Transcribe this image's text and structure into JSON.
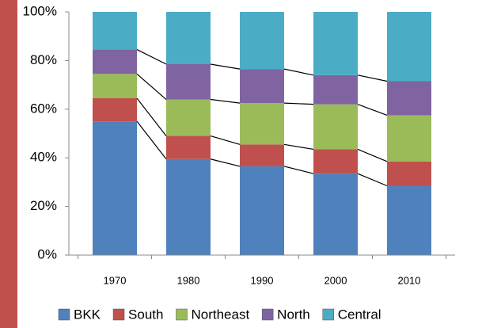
{
  "chart_data": {
    "type": "stacked_bar_100",
    "categories": [
      "1970",
      "1980",
      "1990",
      "2000",
      "2010"
    ],
    "series": [
      {
        "name": "BKK",
        "color": "#4f81bd",
        "values": [
          55,
          39.5,
          36.5,
          33.5,
          28.5
        ]
      },
      {
        "name": "South",
        "color": "#c0504d",
        "values": [
          9.5,
          9.5,
          9,
          10,
          10
        ]
      },
      {
        "name": "Northeast",
        "color": "#9bbb59",
        "values": [
          10,
          15,
          17,
          18.5,
          19
        ]
      },
      {
        "name": "North",
        "color": "#8064a2",
        "values": [
          10,
          14.5,
          14,
          12,
          14
        ]
      },
      {
        "name": "Central",
        "color": "#4bacc6",
        "values": [
          15.5,
          21.5,
          23.5,
          26,
          28.5
        ]
      }
    ],
    "ylim": [
      0,
      100
    ],
    "yticks": [
      {
        "value": 0,
        "label": "0%"
      },
      {
        "value": 20,
        "label": "20%"
      },
      {
        "value": 40,
        "label": "40%"
      },
      {
        "value": 60,
        "label": "60%"
      },
      {
        "value": 80,
        "label": "80%"
      },
      {
        "value": 100,
        "label": "100%"
      }
    ],
    "series_lines": true,
    "legend": "bottom"
  }
}
